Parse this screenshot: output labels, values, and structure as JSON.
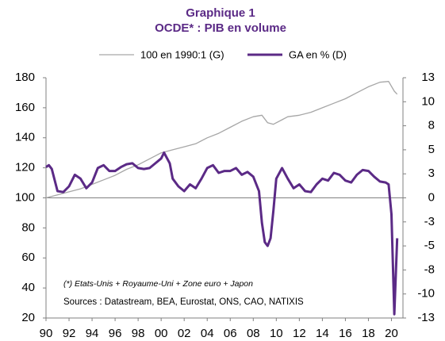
{
  "chart_data": {
    "type": "line",
    "title": "Graphique 1",
    "subtitle": "OCDE* : PIB en volume",
    "annotations": [
      "(*) Etats-Unis + Royaume-Uni + Zone euro + Japon",
      "Sources : Datastream,  BEA, Eurostat, ONS, CAO, NATIXIS"
    ],
    "xlim": [
      1990,
      2021
    ],
    "xticks": [
      {
        "value": 1990,
        "label": "90"
      },
      {
        "value": 1992,
        "label": "92"
      },
      {
        "value": 1994,
        "label": "94"
      },
      {
        "value": 1996,
        "label": "96"
      },
      {
        "value": 1998,
        "label": "98"
      },
      {
        "value": 2000,
        "label": "00"
      },
      {
        "value": 2002,
        "label": "02"
      },
      {
        "value": 2004,
        "label": "04"
      },
      {
        "value": 2006,
        "label": "06"
      },
      {
        "value": 2008,
        "label": "08"
      },
      {
        "value": 2010,
        "label": "10"
      },
      {
        "value": 2012,
        "label": "12"
      },
      {
        "value": 2014,
        "label": "14"
      },
      {
        "value": 2016,
        "label": "16"
      },
      {
        "value": 2018,
        "label": "18"
      },
      {
        "value": 2020,
        "label": "20"
      }
    ],
    "ylim": [
      20,
      180
    ],
    "yticks": [
      20,
      40,
      60,
      80,
      100,
      120,
      140,
      160,
      180
    ],
    "y2lim": [
      -12.5,
      12.5
    ],
    "y2ticks": [
      {
        "value": -12.5,
        "label": "-13"
      },
      -10,
      {
        "value": -7.5,
        "label": "-8"
      },
      -5,
      {
        "value": -2.5,
        "label": "-3"
      },
      0,
      {
        "value": 2.5,
        "label": "3"
      },
      5,
      {
        "value": 7.5,
        "label": "8"
      },
      10,
      {
        "value": 12.5,
        "label": "13"
      }
    ],
    "grid": false,
    "legend": "top",
    "series": [
      {
        "name": "100 en 1990:1 (G)",
        "color": "#a6a6a6",
        "axis": "y",
        "x": [
          1990,
          1991,
          1992,
          1993,
          1994,
          1995,
          1996,
          1997,
          1998,
          1999,
          2000,
          2001,
          2002,
          2003,
          2004,
          2005,
          2006,
          2007,
          2008,
          2008.75,
          2009.25,
          2009.75,
          2010.5,
          2011,
          2012,
          2013,
          2014,
          2015,
          2016,
          2017,
          2018,
          2019,
          2019.75,
          2020.25,
          2020.5
        ],
        "values": [
          100,
          102,
          104,
          106,
          109,
          112,
          115,
          119,
          122,
          126,
          130,
          132,
          134,
          136,
          140,
          143,
          147,
          151,
          154,
          155,
          150,
          149,
          152,
          154,
          155,
          157,
          160,
          163,
          166,
          170,
          174,
          177,
          177.5,
          171,
          169
        ]
      },
      {
        "name": "GA en % (D)",
        "color": "#5b2a86",
        "axis": "y2",
        "x": [
          1990,
          1990.25,
          1990.5,
          1991,
          1991.5,
          1992,
          1992.5,
          1993,
          1993.5,
          1994,
          1994.5,
          1995,
          1995.5,
          1996,
          1996.5,
          1997,
          1997.5,
          1998,
          1998.5,
          1999,
          1999.5,
          2000,
          2000.25,
          2000.75,
          2001,
          2001.5,
          2002,
          2002.5,
          2003,
          2003.5,
          2004,
          2004.5,
          2005,
          2005.5,
          2006,
          2006.5,
          2007,
          2007.5,
          2008,
          2008.5,
          2008.75,
          2009,
          2009.25,
          2009.5,
          2009.75,
          2010,
          2010.5,
          2011,
          2011.5,
          2012,
          2012.5,
          2013,
          2013.5,
          2014,
          2014.5,
          2015,
          2015.5,
          2016,
          2016.5,
          2017,
          2017.5,
          2018,
          2018.5,
          2019,
          2019.5,
          2019.75,
          2020,
          2020.25,
          2020.5
        ],
        "values": [
          3.2,
          3.4,
          3.0,
          0.7,
          0.6,
          1.2,
          2.4,
          2.0,
          1.0,
          1.6,
          3.1,
          3.4,
          2.8,
          2.8,
          3.2,
          3.5,
          3.6,
          3.1,
          3.0,
          3.1,
          3.6,
          4.1,
          4.7,
          3.6,
          2.0,
          1.2,
          0.7,
          1.4,
          1.0,
          2.0,
          3.1,
          3.4,
          2.6,
          2.8,
          2.8,
          3.1,
          2.4,
          2.7,
          2.2,
          0.7,
          -2.6,
          -4.6,
          -5.0,
          -4.2,
          -1.3,
          2.0,
          3.1,
          2.0,
          1.0,
          1.4,
          0.7,
          0.6,
          1.4,
          2.0,
          1.8,
          2.6,
          2.4,
          1.8,
          1.6,
          2.4,
          2.9,
          2.8,
          2.2,
          1.7,
          1.6,
          1.4,
          -1.7,
          -12.1,
          -4.2
        ]
      }
    ]
  }
}
